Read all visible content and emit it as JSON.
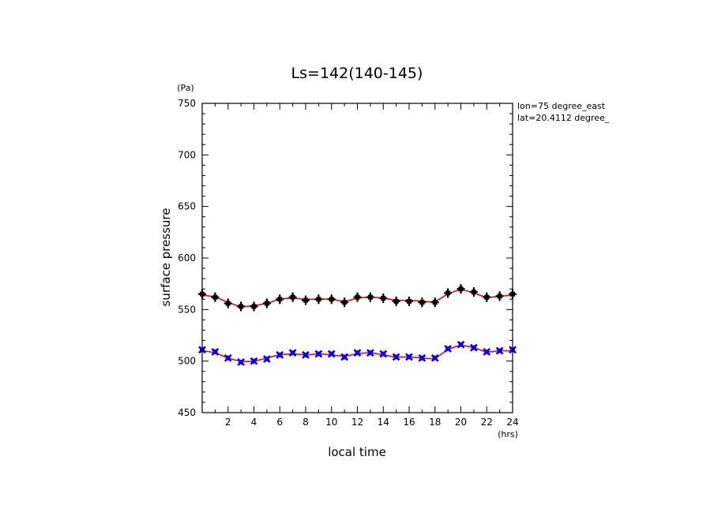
{
  "chart_data": {
    "type": "line",
    "title": "Ls=142(140-145)",
    "xlabel": "local time",
    "ylabel": "surface pressure",
    "x_unit": "(hrs)",
    "y_unit": "(Pa)",
    "xlim": [
      0,
      24
    ],
    "ylim": [
      450,
      750
    ],
    "x_ticks": [
      2,
      4,
      6,
      8,
      10,
      12,
      14,
      16,
      18,
      20,
      22,
      24
    ],
    "y_ticks": [
      450,
      500,
      550,
      600,
      650,
      700,
      750
    ],
    "x_tick_labels": [
      "2",
      "4",
      "6",
      "8",
      "10",
      "12",
      "14",
      "16",
      "18",
      "20",
      "22",
      "24"
    ],
    "y_tick_labels": [
      "450",
      "500",
      "550",
      "600",
      "650",
      "700",
      "750"
    ],
    "grid": false,
    "annotations": [
      "lon=75 degree_east",
      "lat=20.4112 degree_"
    ],
    "x": [
      0,
      1,
      2,
      3,
      4,
      5,
      6,
      7,
      8,
      9,
      10,
      11,
      12,
      13,
      14,
      15,
      16,
      17,
      18,
      19,
      20,
      21,
      22,
      23,
      24
    ],
    "series": [
      {
        "marker": "plus",
        "color": "#000000",
        "values": [
          565,
          562,
          556,
          553,
          553,
          556,
          560,
          562,
          559,
          560,
          560,
          557,
          562,
          562,
          561,
          558,
          558,
          557,
          557,
          566,
          570,
          567,
          562,
          563,
          565
        ]
      },
      {
        "marker": "x",
        "color": "#0000ff",
        "values": [
          511,
          509,
          503,
          499,
          500,
          502,
          506,
          508,
          506,
          507,
          507,
          504,
          508,
          508,
          507,
          504,
          504,
          503,
          503,
          512,
          516,
          513,
          509,
          510,
          511
        ]
      },
      {
        "style": "line",
        "color": "#ff0000",
        "values": [
          564,
          562,
          557,
          553,
          554,
          556,
          560,
          561,
          560,
          560,
          560,
          558,
          561,
          562,
          561,
          559,
          559,
          558,
          558,
          565,
          569,
          566,
          562,
          563,
          564
        ]
      },
      {
        "style": "line",
        "color": "#ff0000",
        "values": [
          510,
          508,
          503,
          500,
          500,
          503,
          506,
          507,
          506,
          507,
          506,
          505,
          507,
          508,
          506,
          504,
          504,
          503,
          503,
          511,
          515,
          513,
          509,
          510,
          510
        ]
      }
    ]
  }
}
